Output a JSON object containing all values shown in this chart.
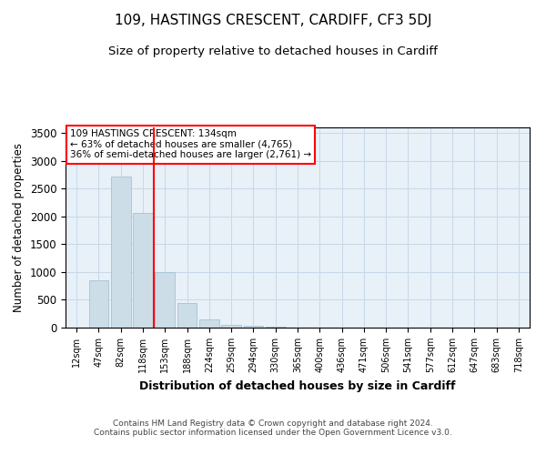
{
  "title": "109, HASTINGS CRESCENT, CARDIFF, CF3 5DJ",
  "subtitle": "Size of property relative to detached houses in Cardiff",
  "xlabel": "Distribution of detached houses by size in Cardiff",
  "ylabel": "Number of detached properties",
  "bar_labels": [
    "12sqm",
    "47sqm",
    "82sqm",
    "118sqm",
    "153sqm",
    "188sqm",
    "224sqm",
    "259sqm",
    "294sqm",
    "330sqm",
    "365sqm",
    "400sqm",
    "436sqm",
    "471sqm",
    "506sqm",
    "541sqm",
    "577sqm",
    "612sqm",
    "647sqm",
    "683sqm",
    "718sqm"
  ],
  "bar_values": [
    5,
    850,
    2720,
    2060,
    1000,
    450,
    140,
    50,
    25,
    10,
    5,
    5,
    3,
    2,
    2,
    2,
    1,
    1,
    1,
    1,
    1
  ],
  "bar_color": "#ccdde8",
  "bar_edge_color": "#9bbcce",
  "vline_color": "red",
  "annotation_text": "109 HASTINGS CRESCENT: 134sqm\n← 63% of detached houses are smaller (4,765)\n36% of semi-detached houses are larger (2,761) →",
  "annotation_box_color": "white",
  "annotation_box_edge_color": "red",
  "grid_color": "#c8d8e8",
  "background_color": "#e8f0f8",
  "footer_line1": "Contains HM Land Registry data © Crown copyright and database right 2024.",
  "footer_line2": "Contains public sector information licensed under the Open Government Licence v3.0.",
  "ylim": [
    0,
    3600
  ],
  "title_fontsize": 11,
  "subtitle_fontsize": 9.5
}
